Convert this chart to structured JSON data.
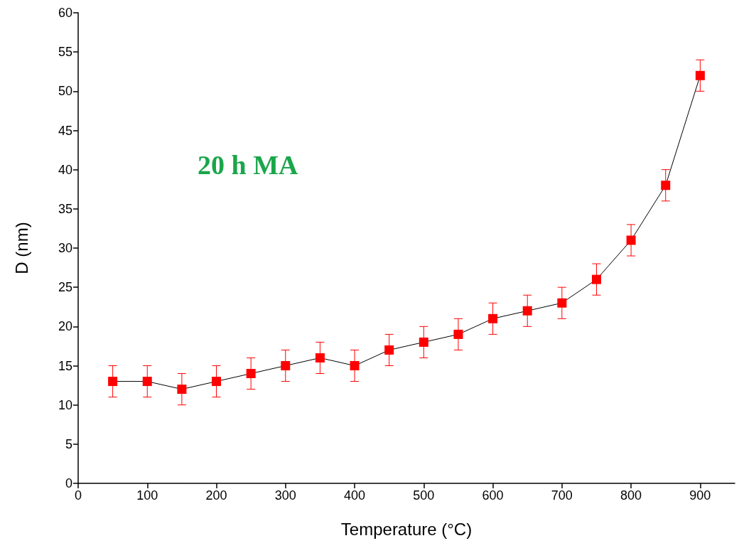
{
  "chart_data": {
    "type": "line",
    "xlabel": "Temperature (°C)",
    "ylabel": "D (nm)",
    "annotations": [
      "20 h MA"
    ],
    "x": [
      50,
      100,
      150,
      200,
      250,
      300,
      350,
      400,
      450,
      500,
      550,
      600,
      650,
      700,
      750,
      800,
      850,
      900
    ],
    "series": [
      {
        "color": "#ff0000",
        "values": [
          13,
          13,
          12,
          13,
          14,
          15,
          16,
          15,
          17,
          18,
          19,
          21,
          22,
          23,
          26,
          31,
          38,
          52
        ],
        "errors": [
          2,
          2,
          2,
          2,
          2,
          2,
          2,
          2,
          2,
          2,
          2,
          2,
          2,
          2,
          2,
          2,
          2,
          2
        ]
      }
    ],
    "xlim": [
      0,
      950
    ],
    "xticks": [
      0,
      100,
      200,
      300,
      400,
      500,
      600,
      700,
      800,
      900
    ],
    "ylim": [
      0,
      60
    ],
    "yticks": [
      0,
      5,
      10,
      15,
      20,
      25,
      30,
      35,
      40,
      45,
      50,
      55,
      60
    ],
    "marker": "square",
    "line_style": "solid",
    "grid": false
  }
}
